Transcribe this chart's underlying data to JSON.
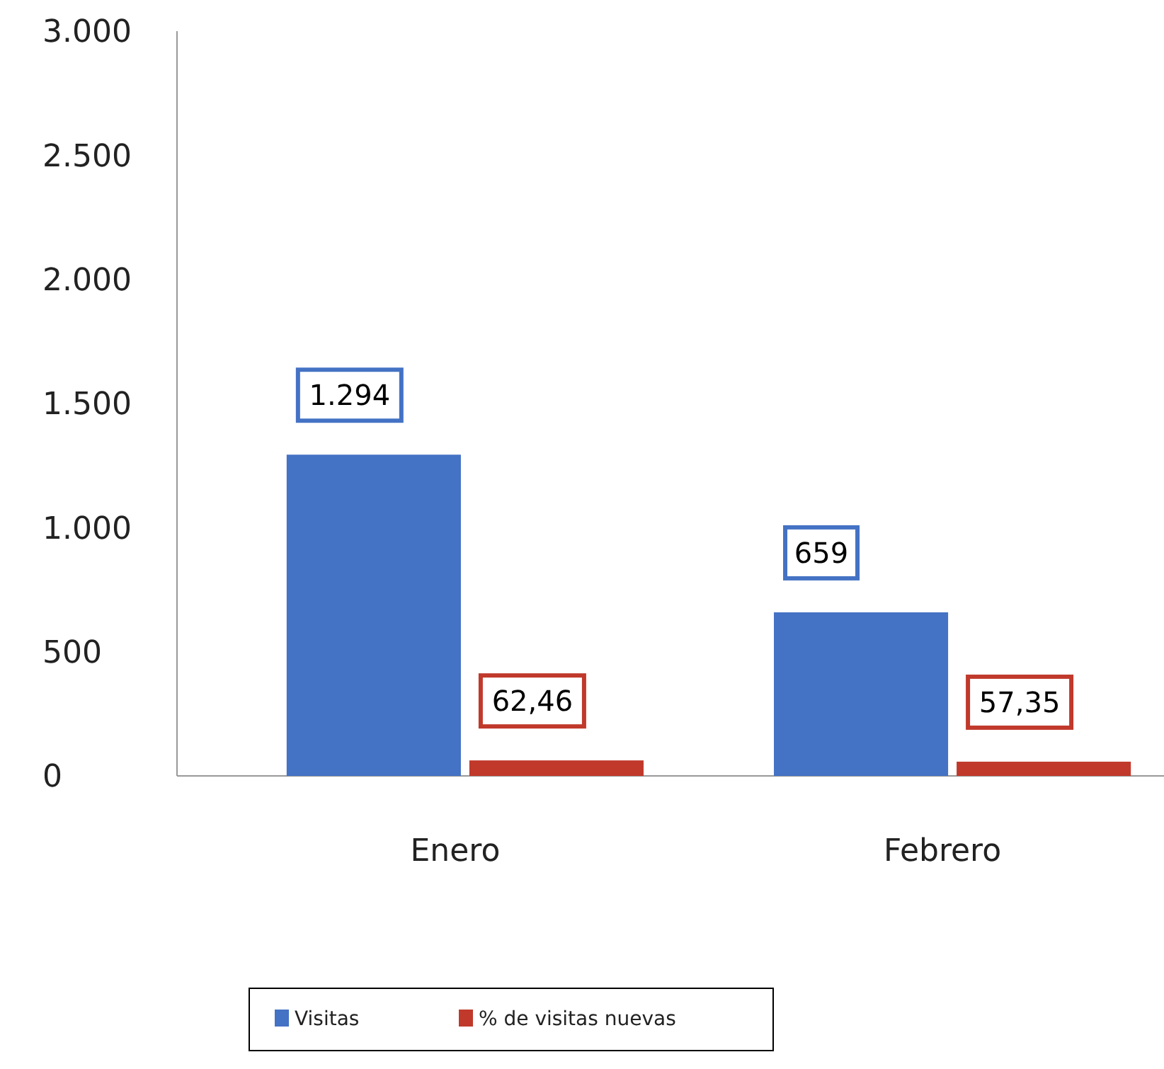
{
  "chart_data": {
    "type": "bar",
    "categories": [
      "Enero",
      "Febrero"
    ],
    "series": [
      {
        "name": "Visitas",
        "color": "#4472c4",
        "values": [
          1294,
          659
        ],
        "value_labels": [
          "1.294",
          "659"
        ]
      },
      {
        "name": "% de visitas nuevas",
        "color": "#c0392b",
        "values": [
          62.46,
          57.35
        ],
        "value_labels": [
          "62,46",
          "57,35"
        ]
      }
    ],
    "ylim": [
      0,
      3000
    ],
    "yticks": [
      0,
      500,
      {
        "value": 1000,
        "label": "1.000"
      },
      {
        "value": 1500,
        "label": "1.500"
      },
      {
        "value": 2000,
        "label": "2.000"
      },
      {
        "value": 2500,
        "label": "2.500"
      },
      {
        "value": 3000,
        "label": "3.000"
      }
    ],
    "legend": "bottom",
    "grid": false
  }
}
